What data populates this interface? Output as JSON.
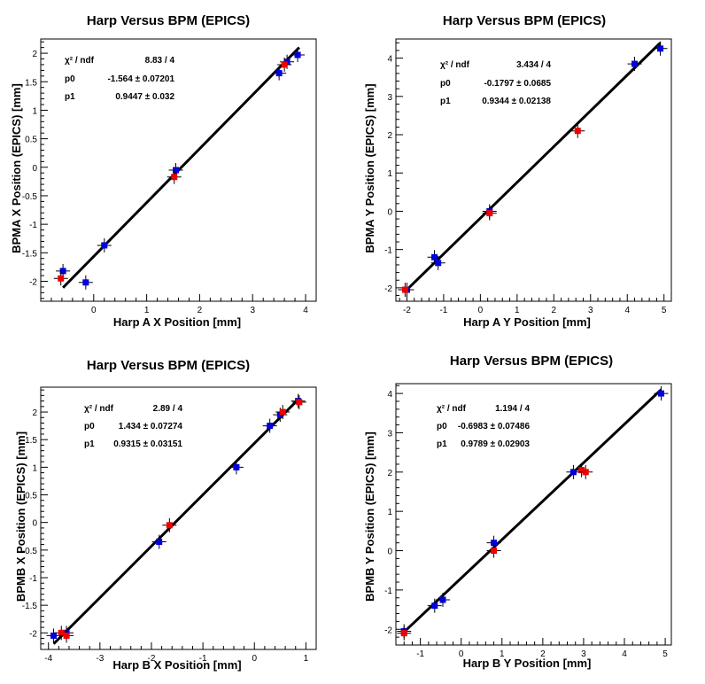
{
  "colors": {
    "series_a": "#0000dd",
    "series_b": "#ee0000",
    "fit": "#000000",
    "axis": "#000000"
  },
  "chart_data": [
    {
      "type": "scatter",
      "title": "Harp Versus BPM (EPICS)",
      "xlabel": "Harp A X Position [mm]",
      "ylabel": "BPMA X Position (EPICS) [mm]",
      "xlim": [
        -1,
        4.2
      ],
      "ylim": [
        -2.35,
        2.25
      ],
      "xticks": [
        0,
        1,
        2,
        3,
        4
      ],
      "yticks": [
        -2,
        -1.5,
        -1,
        -0.5,
        0,
        0.5,
        1,
        1.5,
        2
      ],
      "yticklabels": [
        "-2",
        "-1.5",
        "-1",
        "-0.5",
        "0",
        "0.5",
        "1",
        "1.5",
        "2"
      ],
      "stats": [
        {
          "label": "χ² / ndf",
          "value": "8.83 / 4"
        },
        {
          "label": "p0",
          "value": "-1.564 ± 0.07201"
        },
        {
          "label": "p1",
          "value": "0.9447 ± 0.032"
        }
      ],
      "fit": {
        "slope": 0.9447,
        "intercept": -1.564,
        "x_range": [
          -0.58,
          3.88
        ]
      },
      "series": [
        {
          "color": "blue",
          "points": [
            [
              -0.58,
              -1.82
            ],
            [
              -0.15,
              -2.02
            ],
            [
              0.2,
              -1.37
            ],
            [
              1.55,
              -0.05
            ],
            [
              3.5,
              1.65
            ],
            [
              3.65,
              1.85
            ],
            [
              3.85,
              1.97
            ]
          ]
        },
        {
          "color": "red",
          "points": [
            [
              -0.62,
              -1.95
            ],
            [
              1.52,
              -0.17
            ],
            [
              3.6,
              1.8
            ]
          ]
        }
      ]
    },
    {
      "type": "scatter",
      "title": "Harp Versus BPM (EPICS)",
      "xlabel": "Harp A Y Position [mm]",
      "ylabel": "BPMA Y Position (EPICS) [mm]",
      "xlim": [
        -2.3,
        5.2
      ],
      "ylim": [
        -2.35,
        4.5
      ],
      "xticks": [
        -2,
        -1,
        0,
        1,
        2,
        3,
        4,
        5
      ],
      "yticks": [
        -2,
        -1,
        0,
        1,
        2,
        3,
        4
      ],
      "yticklabels": [
        "-2",
        "-1",
        "0",
        "1",
        "2",
        "3",
        "4"
      ],
      "stats": [
        {
          "label": "χ² / ndf",
          "value": "3.434 / 4"
        },
        {
          "label": "p0",
          "value": "-0.1797 ± 0.0685"
        },
        {
          "label": "p1",
          "value": "0.9344 ± 0.02138"
        }
      ],
      "fit": {
        "slope": 0.9344,
        "intercept": -0.1797,
        "x_range": [
          -2.0,
          4.9
        ]
      },
      "series": [
        {
          "color": "blue",
          "points": [
            [
              -2.0,
              -2.05
            ],
            [
              -1.25,
              -1.2
            ],
            [
              -1.15,
              -1.35
            ],
            [
              0.25,
              -0.0
            ],
            [
              4.2,
              3.85
            ],
            [
              4.9,
              4.25
            ]
          ]
        },
        {
          "color": "red",
          "points": [
            [
              -2.05,
              -2.05
            ],
            [
              0.25,
              -0.05
            ],
            [
              2.65,
              2.1
            ]
          ]
        }
      ]
    },
    {
      "type": "scatter",
      "title": "Harp Versus BPM (EPICS)",
      "xlabel": "Harp B X Position [mm]",
      "ylabel": "BPMB X Position (EPICS) [mm]",
      "xlim": [
        -4.15,
        1.2
      ],
      "ylim": [
        -2.3,
        2.45
      ],
      "xticks": [
        -4,
        -3,
        -2,
        -1,
        0,
        1
      ],
      "yticks": [
        -2,
        -1.5,
        -1,
        -0.5,
        0,
        0.5,
        1,
        1.5,
        2
      ],
      "yticklabels": [
        "-2",
        "-1.5",
        "-1",
        "-0.5",
        "0",
        "0.5",
        "1",
        "1.5",
        "2"
      ],
      "stats": [
        {
          "label": "χ² / ndf",
          "value": "2.89 / 4"
        },
        {
          "label": "p0",
          "value": "1.434 ± 0.07274"
        },
        {
          "label": "p1",
          "value": "0.9315 ± 0.03151"
        }
      ],
      "fit": {
        "slope": 0.9315,
        "intercept": 1.434,
        "x_range": [
          -3.9,
          0.87
        ]
      },
      "series": [
        {
          "color": "blue",
          "points": [
            [
              -3.9,
              -2.05
            ],
            [
              -3.65,
              -2.0
            ],
            [
              -1.85,
              -0.35
            ],
            [
              -0.35,
              1.0
            ],
            [
              0.3,
              1.75
            ],
            [
              0.5,
              1.95
            ],
            [
              0.85,
              2.2
            ]
          ]
        },
        {
          "color": "red",
          "points": [
            [
              -3.75,
              -2.0
            ],
            [
              -3.65,
              -2.05
            ],
            [
              -1.65,
              -0.05
            ],
            [
              0.55,
              2.0
            ],
            [
              0.87,
              2.18
            ]
          ]
        }
      ]
    },
    {
      "type": "scatter",
      "title": "Harp Versus BPM (EPICS)",
      "xlabel": "Harp B Y Position [mm]",
      "ylabel": "BPMB Y Position (EPICS) [mm]",
      "xlim": [
        -1.6,
        5.15
      ],
      "ylim": [
        -2.4,
        4.25
      ],
      "xticks": [
        -1,
        0,
        1,
        2,
        3,
        4,
        5
      ],
      "yticks": [
        -2,
        -1,
        0,
        1,
        2,
        3,
        4
      ],
      "yticklabels": [
        "-2",
        "-1",
        "0",
        "1",
        "2",
        "3",
        "4"
      ],
      "stats": [
        {
          "label": "χ² / ndf",
          "value": "1.194 / 4"
        },
        {
          "label": "p0",
          "value": "-0.6983 ± 0.07486"
        },
        {
          "label": "p1",
          "value": "0.9789 ± 0.02903"
        }
      ],
      "fit": {
        "slope": 0.9789,
        "intercept": -0.6983,
        "x_range": [
          -1.4,
          4.9
        ]
      },
      "series": [
        {
          "color": "blue",
          "points": [
            [
              -1.4,
              -2.05
            ],
            [
              -0.65,
              -1.4
            ],
            [
              -0.45,
              -1.25
            ],
            [
              0.8,
              0.2
            ],
            [
              2.75,
              2.0
            ],
            [
              4.9,
              4.0
            ]
          ]
        },
        {
          "color": "red",
          "points": [
            [
              -1.4,
              -2.1
            ],
            [
              0.8,
              0.0
            ],
            [
              2.95,
              2.05
            ],
            [
              3.05,
              2.0
            ]
          ]
        }
      ]
    }
  ]
}
